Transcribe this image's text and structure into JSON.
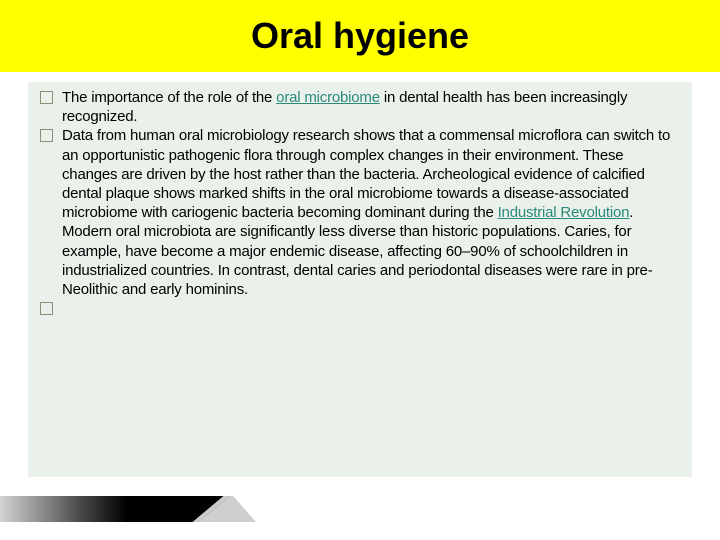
{
  "title": "Oral hygiene",
  "title_bg": "#ffff00",
  "title_color": "#000000",
  "content_bg": "#eaf1ea",
  "link_color": "#2a8a7a",
  "bullets": [
    {
      "segments": [
        {
          "text": "The importance of the role of the ",
          "link": false
        },
        {
          "text": "oral microbiome",
          "link": true
        },
        {
          "text": " in dental health has been increasingly recognized.",
          "link": false
        }
      ]
    },
    {
      "segments": [
        {
          "text": " Data from human oral microbiology research shows that a commensal microflora can switch to an opportunistic pathogenic flora through complex changes in their environment. These changes are driven by the host rather than the bacteria. Archeological evidence of calcified dental plaque shows marked shifts in the oral microbiome towards a disease-associated microbiome with cariogenic bacteria becoming dominant during the ",
          "link": false
        },
        {
          "text": "Industrial Revolution",
          "link": true
        },
        {
          "text": ". Modern oral microbiota are significantly less diverse than historic populations. Caries, for example, have become a major endemic disease, affecting 60–90% of schoolchildren in industrialized countries. In contrast, dental caries and periodontal diseases were rare in pre-Neolithic and early hominins.",
          "link": false
        }
      ]
    },
    {
      "segments": []
    }
  ]
}
